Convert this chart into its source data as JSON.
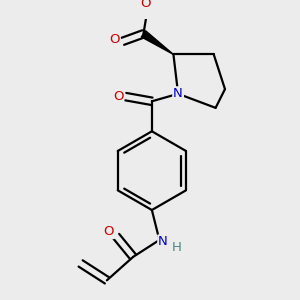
{
  "bg_color": "#ececec",
  "bond_color": "#000000",
  "bond_width": 1.6,
  "atom_colors": {
    "O": "#cc0000",
    "N": "#0000cc",
    "C": "#000000",
    "H": "#4a8888"
  },
  "font_size": 8.5,
  "figsize": [
    3.0,
    3.0
  ],
  "dpi": 100
}
